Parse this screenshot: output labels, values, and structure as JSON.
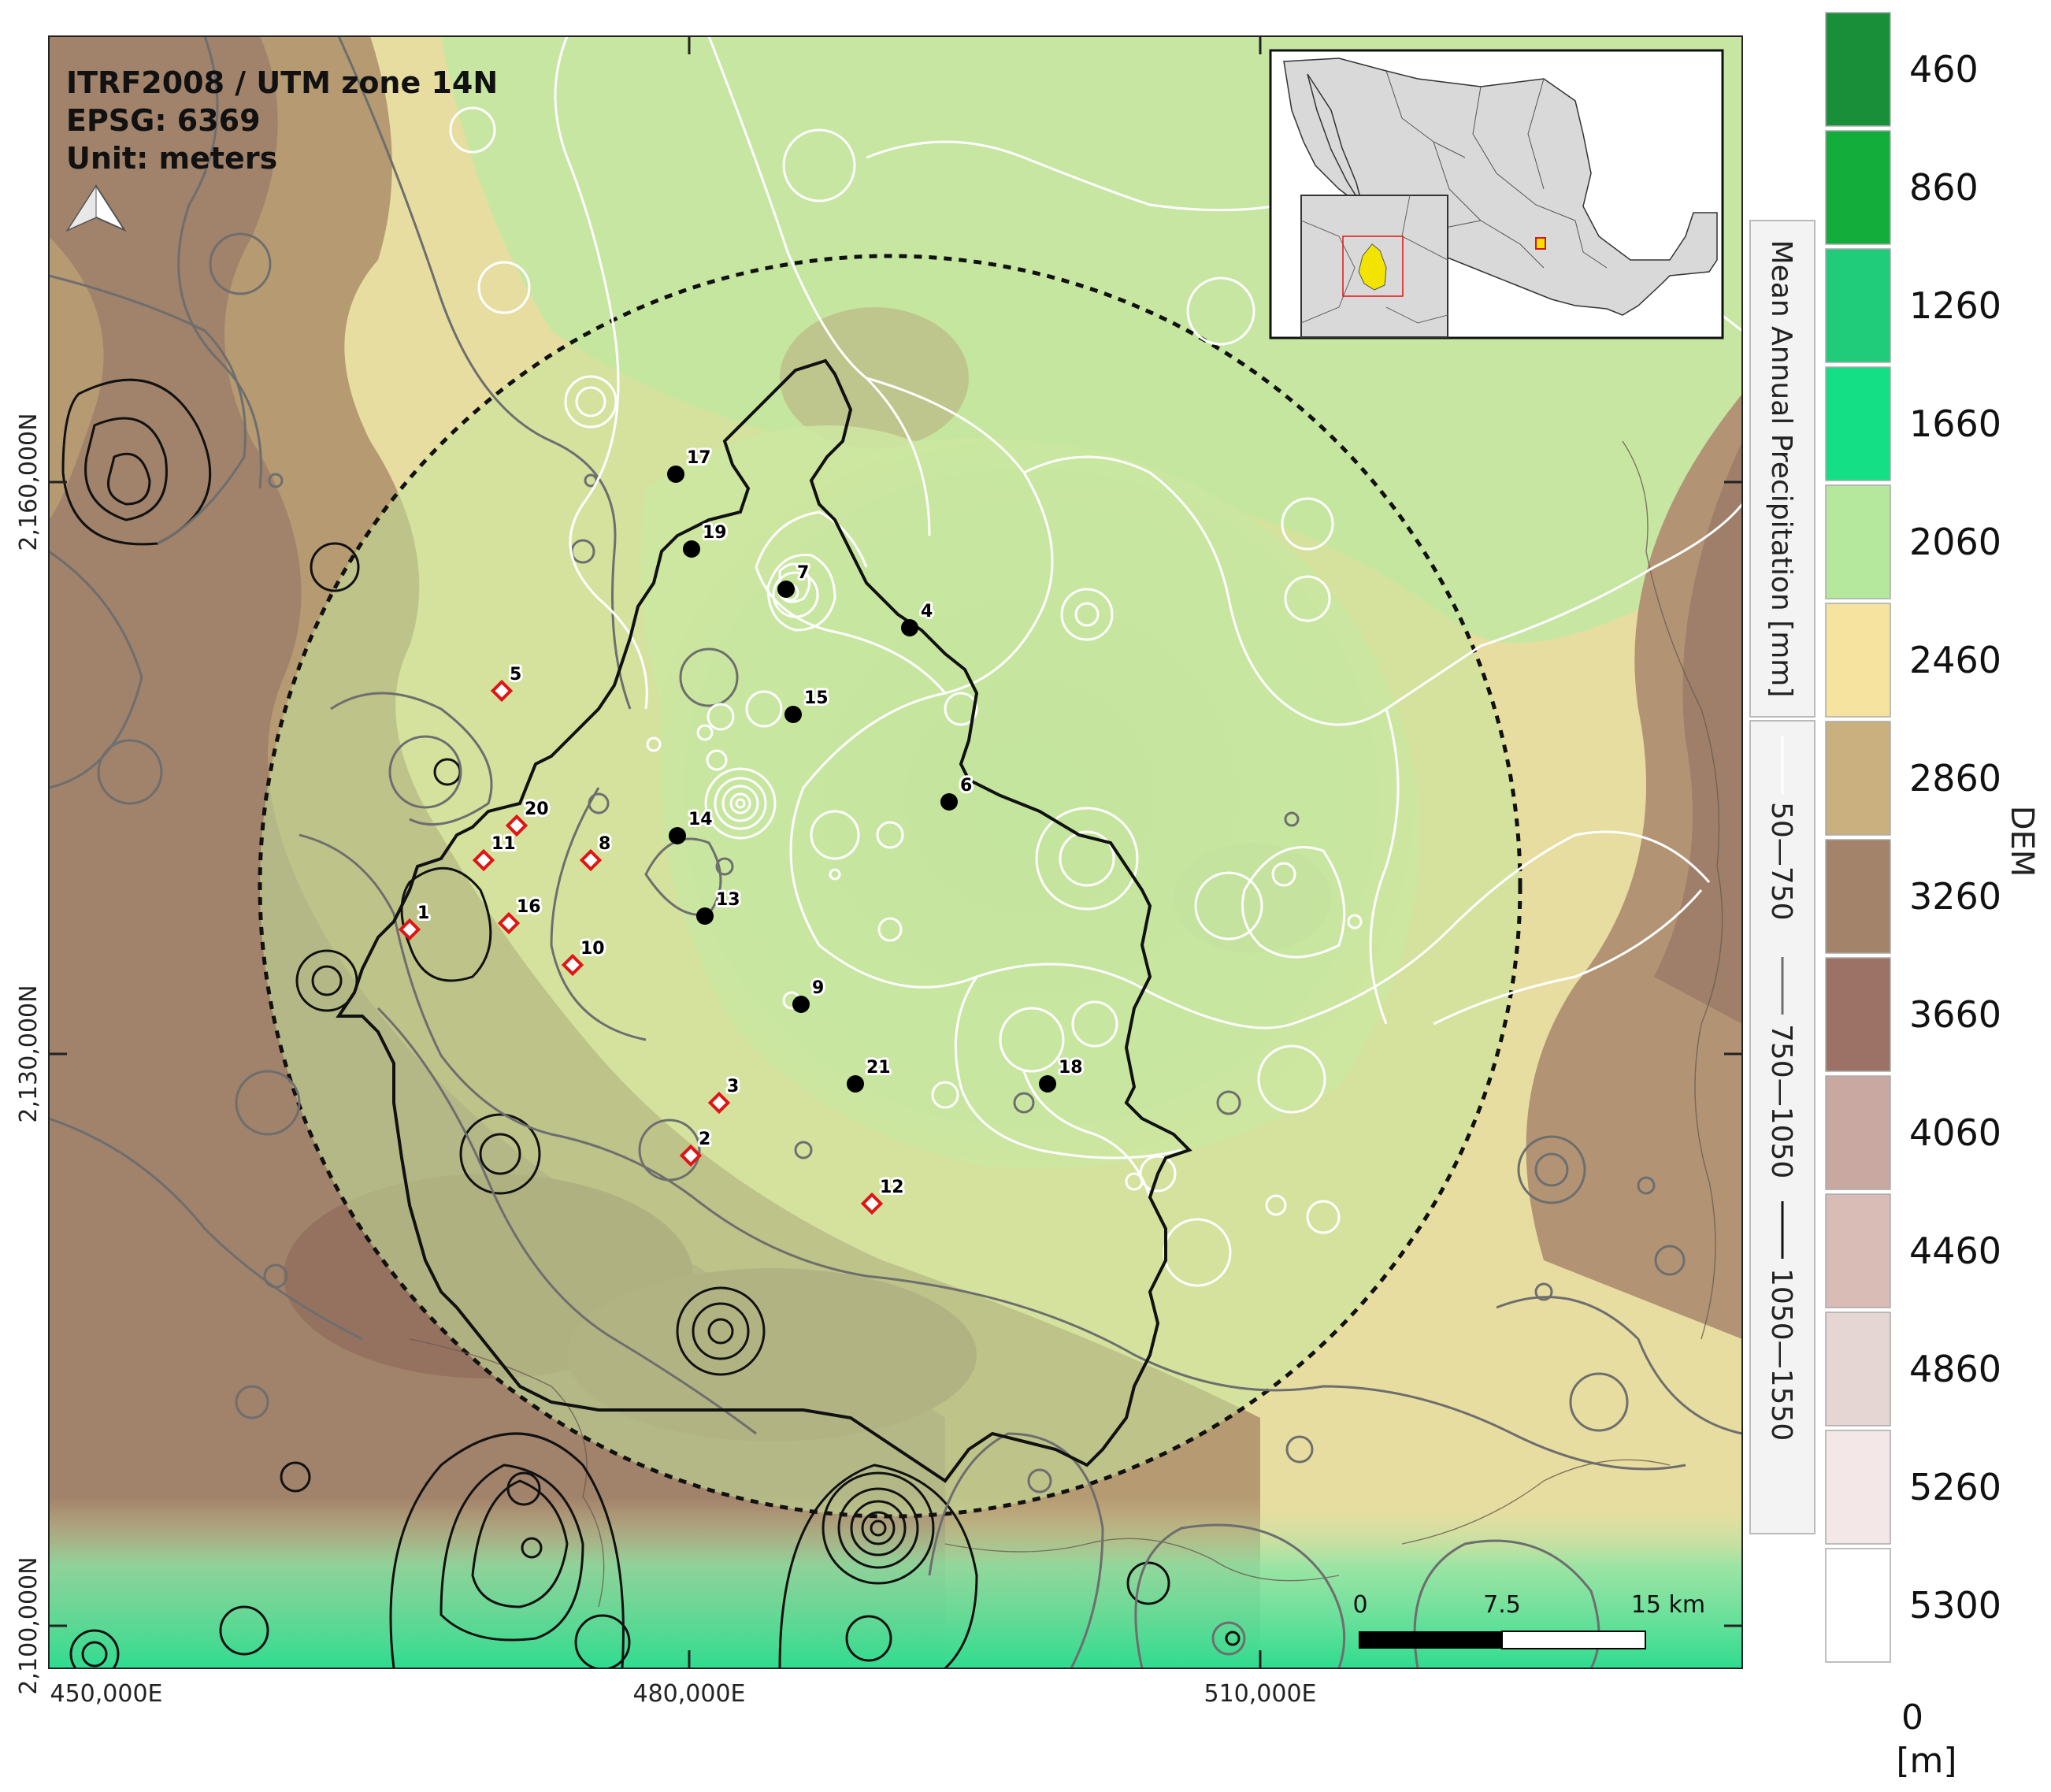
{
  "crs": {
    "line1": "ITRF2008 / UTM zone 14N",
    "line2": "EPSG: 6369",
    "line3": "Unit: meters"
  },
  "axes": {
    "x_ticks": [
      "450,000E",
      "480,000E",
      "510,000E"
    ],
    "y_ticks": [
      "2,160,000N",
      "2,130,000N",
      "2,100,000N"
    ]
  },
  "dem_legend": {
    "title": "DEM",
    "unit_zero": "0",
    "unit": "[m]",
    "classes": [
      {
        "label": "460",
        "color": "#1a8f3a"
      },
      {
        "label": "860",
        "color": "#13ad3b"
      },
      {
        "label": "1260",
        "color": "#20cc7a"
      },
      {
        "label": "1660",
        "color": "#14df85"
      },
      {
        "label": "2060",
        "color": "#b5e89c"
      },
      {
        "label": "2460",
        "color": "#f6e3a0"
      },
      {
        "label": "2860",
        "color": "#c9b07e"
      },
      {
        "label": "3260",
        "color": "#a3836a"
      },
      {
        "label": "3660",
        "color": "#9c7166"
      },
      {
        "label": "4060",
        "color": "#c8a8a0"
      },
      {
        "label": "4460",
        "color": "#d9bcb6"
      },
      {
        "label": "4860",
        "color": "#e6d6d3"
      },
      {
        "label": "5260",
        "color": "#f3e8e7"
      },
      {
        "label": "5300",
        "color": "#ffffff"
      }
    ]
  },
  "precip_legend": {
    "title": "Mean Annual Precipitation [mm]",
    "classes": [
      {
        "label": "50—750",
        "color": "#ffffff"
      },
      {
        "label": "750—1050",
        "color": "#6e6e6e"
      },
      {
        "label": "1050—1550",
        "color": "#111111"
      }
    ]
  },
  "scale_bar": {
    "labels": [
      "0",
      "7.5",
      "15 km"
    ]
  },
  "stations_dots": [
    {
      "id": "17"
    },
    {
      "id": "19"
    },
    {
      "id": "7"
    },
    {
      "id": "4"
    },
    {
      "id": "15"
    },
    {
      "id": "6"
    },
    {
      "id": "14"
    },
    {
      "id": "13"
    },
    {
      "id": "9"
    },
    {
      "id": "21"
    },
    {
      "id": "18"
    }
  ],
  "stations_diamonds": [
    {
      "id": "5"
    },
    {
      "id": "20"
    },
    {
      "id": "8"
    },
    {
      "id": "11"
    },
    {
      "id": "1"
    },
    {
      "id": "16"
    },
    {
      "id": "10"
    },
    {
      "id": "3"
    },
    {
      "id": "2"
    },
    {
      "id": "12"
    }
  ],
  "colors": {
    "valley": "#c9e7a3",
    "lowland": "#e8dfa0",
    "hills": "#b89b74",
    "mountain": "#9f7c68",
    "south_lowland": "#4fe0a2",
    "diamond": "#e01414",
    "dot": "#000000"
  }
}
